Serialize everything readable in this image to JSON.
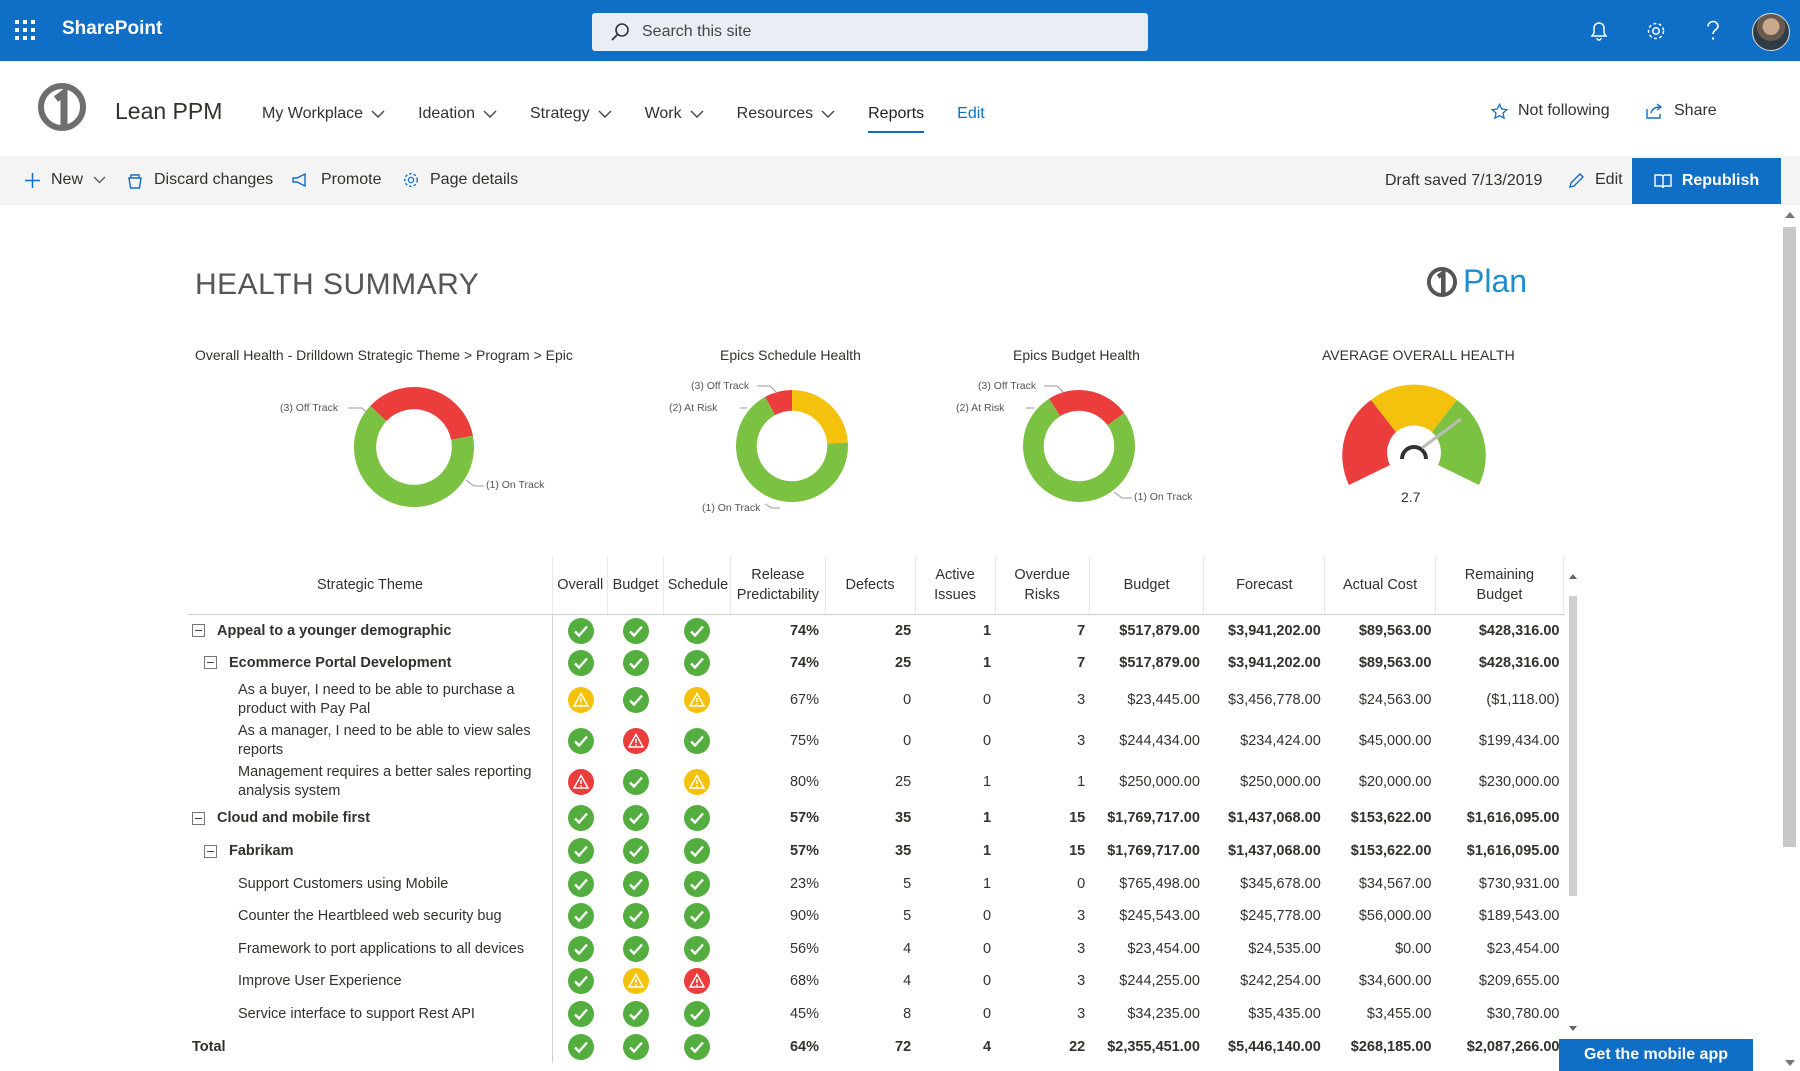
{
  "suitebar": {
    "brand": "SharePoint",
    "search_placeholder": "Search this site"
  },
  "site": {
    "name": "Lean PPM",
    "nav": [
      {
        "label": "My Workplace",
        "dropdown": true
      },
      {
        "label": "Ideation",
        "dropdown": true
      },
      {
        "label": "Strategy",
        "dropdown": true
      },
      {
        "label": "Work",
        "dropdown": true
      },
      {
        "label": "Resources",
        "dropdown": true
      },
      {
        "label": "Reports",
        "dropdown": false,
        "active": true
      },
      {
        "label": "Edit",
        "dropdown": false
      }
    ],
    "follow_label": "Not following",
    "share_label": "Share"
  },
  "commandbar": {
    "new_label": "New",
    "discard_label": "Discard changes",
    "promote_label": "Promote",
    "details_label": "Page details",
    "draft_status": "Draft saved 7/13/2019",
    "edit_label": "Edit",
    "republish_label": "Republish"
  },
  "page": {
    "title": "HEALTH SUMMARY",
    "logo_text": "Plan"
  },
  "charts": {
    "overall": {
      "title": "Overall Health - Drilldown Strategic Theme > Program > Epic",
      "label_off": "(3) Off Track",
      "label_on": "(1) On Track"
    },
    "schedule": {
      "title": "Epics Schedule Health",
      "label_off": "(3) Off Track",
      "label_risk": "(2) At Risk",
      "label_on": "(1) On Track"
    },
    "budget": {
      "title": "Epics Budget Health",
      "label_off": "(3) Off Track",
      "label_risk": "(2) At Risk",
      "label_on": "(1) On Track"
    },
    "gauge": {
      "title": "AVERAGE OVERALL HEALTH",
      "value": "2.7"
    }
  },
  "chart_data": [
    {
      "type": "pie",
      "title": "Overall Health - Drilldown Strategic Theme > Program > Epic",
      "categories": [
        "(3) Off Track",
        "(1) On Track"
      ],
      "values": [
        35,
        65
      ],
      "colors": [
        "#ec3d3d",
        "#7cc242"
      ]
    },
    {
      "type": "pie",
      "title": "Epics Schedule Health",
      "categories": [
        "(3) Off Track",
        "(2) At Risk",
        "(1) On Track"
      ],
      "values": [
        8,
        24,
        68
      ],
      "colors": [
        "#ec3d3d",
        "#f4c20d",
        "#7cc242"
      ]
    },
    {
      "type": "pie",
      "title": "Epics Budget Health",
      "categories": [
        "(3) Off Track",
        "(2) At Risk",
        "(1) On Track"
      ],
      "values": [
        9,
        15,
        76
      ],
      "colors": [
        "#ec3d3d",
        "#ec3d3d",
        "#7cc242"
      ]
    }
  ],
  "table": {
    "headers": [
      "Strategic Theme",
      "Overall",
      "Budget",
      "Schedule",
      "Release Predictability",
      "Defects",
      "Active Issues",
      "Overdue Risks",
      "Budget",
      "Forecast",
      "Actual Cost",
      "Remaining Budget"
    ],
    "rows": [
      {
        "level": 0,
        "bold": true,
        "expander": true,
        "name": "Appeal to a younger demographic",
        "overall": "green",
        "budget": "green",
        "schedule": "green",
        "release": "74%",
        "defects": "25",
        "issues": "1",
        "risks": "7",
        "budget_amt": "$517,879.00",
        "forecast": "$3,941,202.00",
        "actual": "$89,563.00",
        "remaining": "$428,316.00"
      },
      {
        "level": 1,
        "bold": true,
        "expander": true,
        "name": "Ecommerce Portal Development",
        "overall": "green",
        "budget": "green",
        "schedule": "green",
        "release": "74%",
        "defects": "25",
        "issues": "1",
        "risks": "7",
        "budget_amt": "$517,879.00",
        "forecast": "$3,941,202.00",
        "actual": "$89,563.00",
        "remaining": "$428,316.00"
      },
      {
        "level": 2,
        "bold": false,
        "tall": true,
        "name": "As a buyer, I need to be able to purchase a product with Pay Pal",
        "overall": "yellow",
        "budget": "green",
        "schedule": "yellow",
        "release": "67%",
        "defects": "0",
        "issues": "0",
        "risks": "3",
        "budget_amt": "$23,445.00",
        "forecast": "$3,456,778.00",
        "actual": "$24,563.00",
        "remaining": "($1,118.00)"
      },
      {
        "level": 2,
        "bold": false,
        "tall": true,
        "name": "As a manager, I need to be able to view sales reports",
        "overall": "green",
        "budget": "red",
        "schedule": "green",
        "release": "75%",
        "defects": "0",
        "issues": "0",
        "risks": "3",
        "budget_amt": "$244,434.00",
        "forecast": "$234,424.00",
        "actual": "$45,000.00",
        "remaining": "$199,434.00"
      },
      {
        "level": 2,
        "bold": false,
        "tall": true,
        "name": "Management requires a better sales reporting analysis system",
        "overall": "red",
        "budget": "green",
        "schedule": "yellow",
        "release": "80%",
        "defects": "25",
        "issues": "1",
        "risks": "1",
        "budget_amt": "$250,000.00",
        "forecast": "$250,000.00",
        "actual": "$20,000.00",
        "remaining": "$230,000.00"
      },
      {
        "level": 0,
        "bold": true,
        "expander": true,
        "name": "Cloud and mobile first",
        "overall": "green",
        "budget": "green",
        "schedule": "green",
        "release": "57%",
        "defects": "35",
        "issues": "1",
        "risks": "15",
        "budget_amt": "$1,769,717.00",
        "forecast": "$1,437,068.00",
        "actual": "$153,622.00",
        "remaining": "$1,616,095.00"
      },
      {
        "level": 1,
        "bold": true,
        "expander": true,
        "name": "Fabrikam",
        "overall": "green",
        "budget": "green",
        "schedule": "green",
        "release": "57%",
        "defects": "35",
        "issues": "1",
        "risks": "15",
        "budget_amt": "$1,769,717.00",
        "forecast": "$1,437,068.00",
        "actual": "$153,622.00",
        "remaining": "$1,616,095.00"
      },
      {
        "level": 2,
        "bold": false,
        "name": "Support Customers using Mobile",
        "overall": "green",
        "budget": "green",
        "schedule": "green",
        "release": "23%",
        "defects": "5",
        "issues": "1",
        "risks": "0",
        "budget_amt": "$765,498.00",
        "forecast": "$345,678.00",
        "actual": "$34,567.00",
        "remaining": "$730,931.00"
      },
      {
        "level": 2,
        "bold": false,
        "name": "Counter the Heartbleed web security bug",
        "overall": "green",
        "budget": "green",
        "schedule": "green",
        "release": "90%",
        "defects": "5",
        "issues": "0",
        "risks": "3",
        "budget_amt": "$245,543.00",
        "forecast": "$245,778.00",
        "actual": "$56,000.00",
        "remaining": "$189,543.00"
      },
      {
        "level": 2,
        "bold": false,
        "name": "Framework to port applications to all devices",
        "overall": "green",
        "budget": "green",
        "schedule": "green",
        "release": "56%",
        "defects": "4",
        "issues": "0",
        "risks": "3",
        "budget_amt": "$23,454.00",
        "forecast": "$24,535.00",
        "actual": "$0.00",
        "remaining": "$23,454.00"
      },
      {
        "level": 2,
        "bold": false,
        "name": "Improve User Experience",
        "overall": "green",
        "budget": "yellow",
        "schedule": "red",
        "release": "68%",
        "defects": "4",
        "issues": "0",
        "risks": "3",
        "budget_amt": "$244,255.00",
        "forecast": "$242,254.00",
        "actual": "$34,600.00",
        "remaining": "$209,655.00"
      },
      {
        "level": 2,
        "bold": false,
        "name": "Service interface to support Rest API",
        "overall": "green",
        "budget": "green",
        "schedule": "green",
        "release": "45%",
        "defects": "8",
        "issues": "0",
        "risks": "3",
        "budget_amt": "$34,235.00",
        "forecast": "$35,435.00",
        "actual": "$3,455.00",
        "remaining": "$30,780.00"
      }
    ],
    "total": {
      "name": "Total",
      "overall": "green",
      "budget": "green",
      "schedule": "green",
      "release": "64%",
      "defects": "72",
      "issues": "4",
      "risks": "22",
      "budget_amt": "$2,355,451.00",
      "forecast": "$5,446,140.00",
      "actual": "$268,185.00",
      "remaining": "$2,087,266.00"
    }
  },
  "mobile_app_label": "Get the mobile app"
}
